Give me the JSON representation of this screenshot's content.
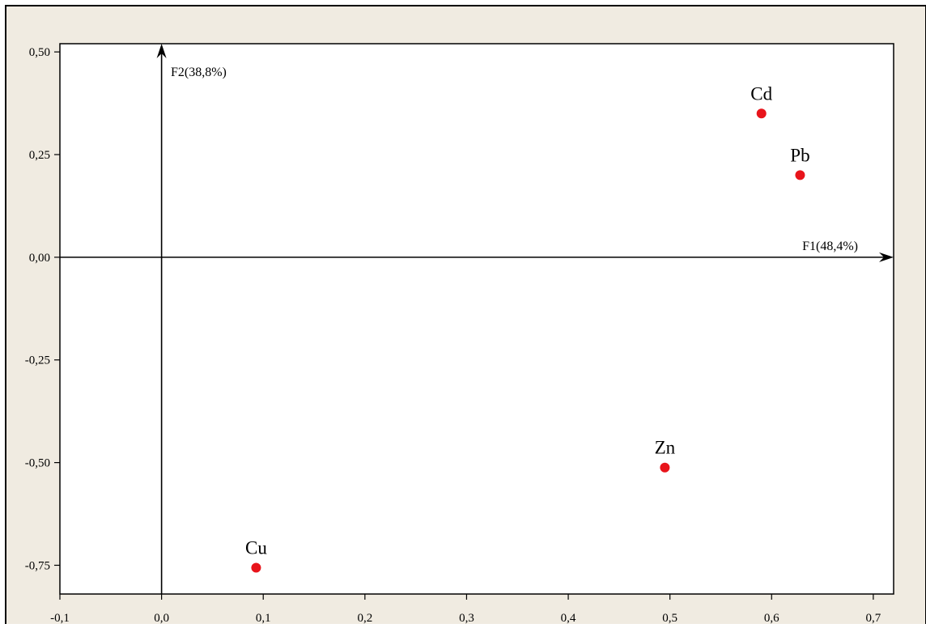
{
  "chart_data": {
    "type": "scatter",
    "title": "",
    "xlabel": "",
    "ylabel": "",
    "xlim": [
      -0.1,
      0.72
    ],
    "ylim": [
      -0.82,
      0.52
    ],
    "x_ticks": [
      -0.1,
      0.0,
      0.1,
      0.2,
      0.3,
      0.4,
      0.5,
      0.6,
      0.7
    ],
    "x_tick_labels": [
      "-0,1",
      "0,0",
      "0,1",
      "0,2",
      "0,3",
      "0,4",
      "0,5",
      "0,6",
      "0,7"
    ],
    "y_ticks": [
      0.5,
      0.25,
      0.0,
      -0.25,
      -0.5,
      -0.75
    ],
    "y_tick_labels": [
      "0,50",
      "0,25",
      "0,00",
      "-0,25",
      "-0,50",
      "-0,75"
    ],
    "axis_arrows": {
      "f1_label": "F1(48,4%)",
      "f2_label": "F2(38,8%)"
    },
    "grid": false,
    "legend": "none",
    "points": [
      {
        "label": "Cd",
        "x": 0.59,
        "y": 0.35
      },
      {
        "label": "Pb",
        "x": 0.628,
        "y": 0.2
      },
      {
        "label": "Zn",
        "x": 0.495,
        "y": -0.512
      },
      {
        "label": "Cu",
        "x": 0.093,
        "y": -0.756
      }
    ],
    "colors": {
      "frame_background": "#f0ebe1",
      "plot_background": "#ffffff",
      "point": "#e8141b",
      "axis": "#000000"
    }
  }
}
